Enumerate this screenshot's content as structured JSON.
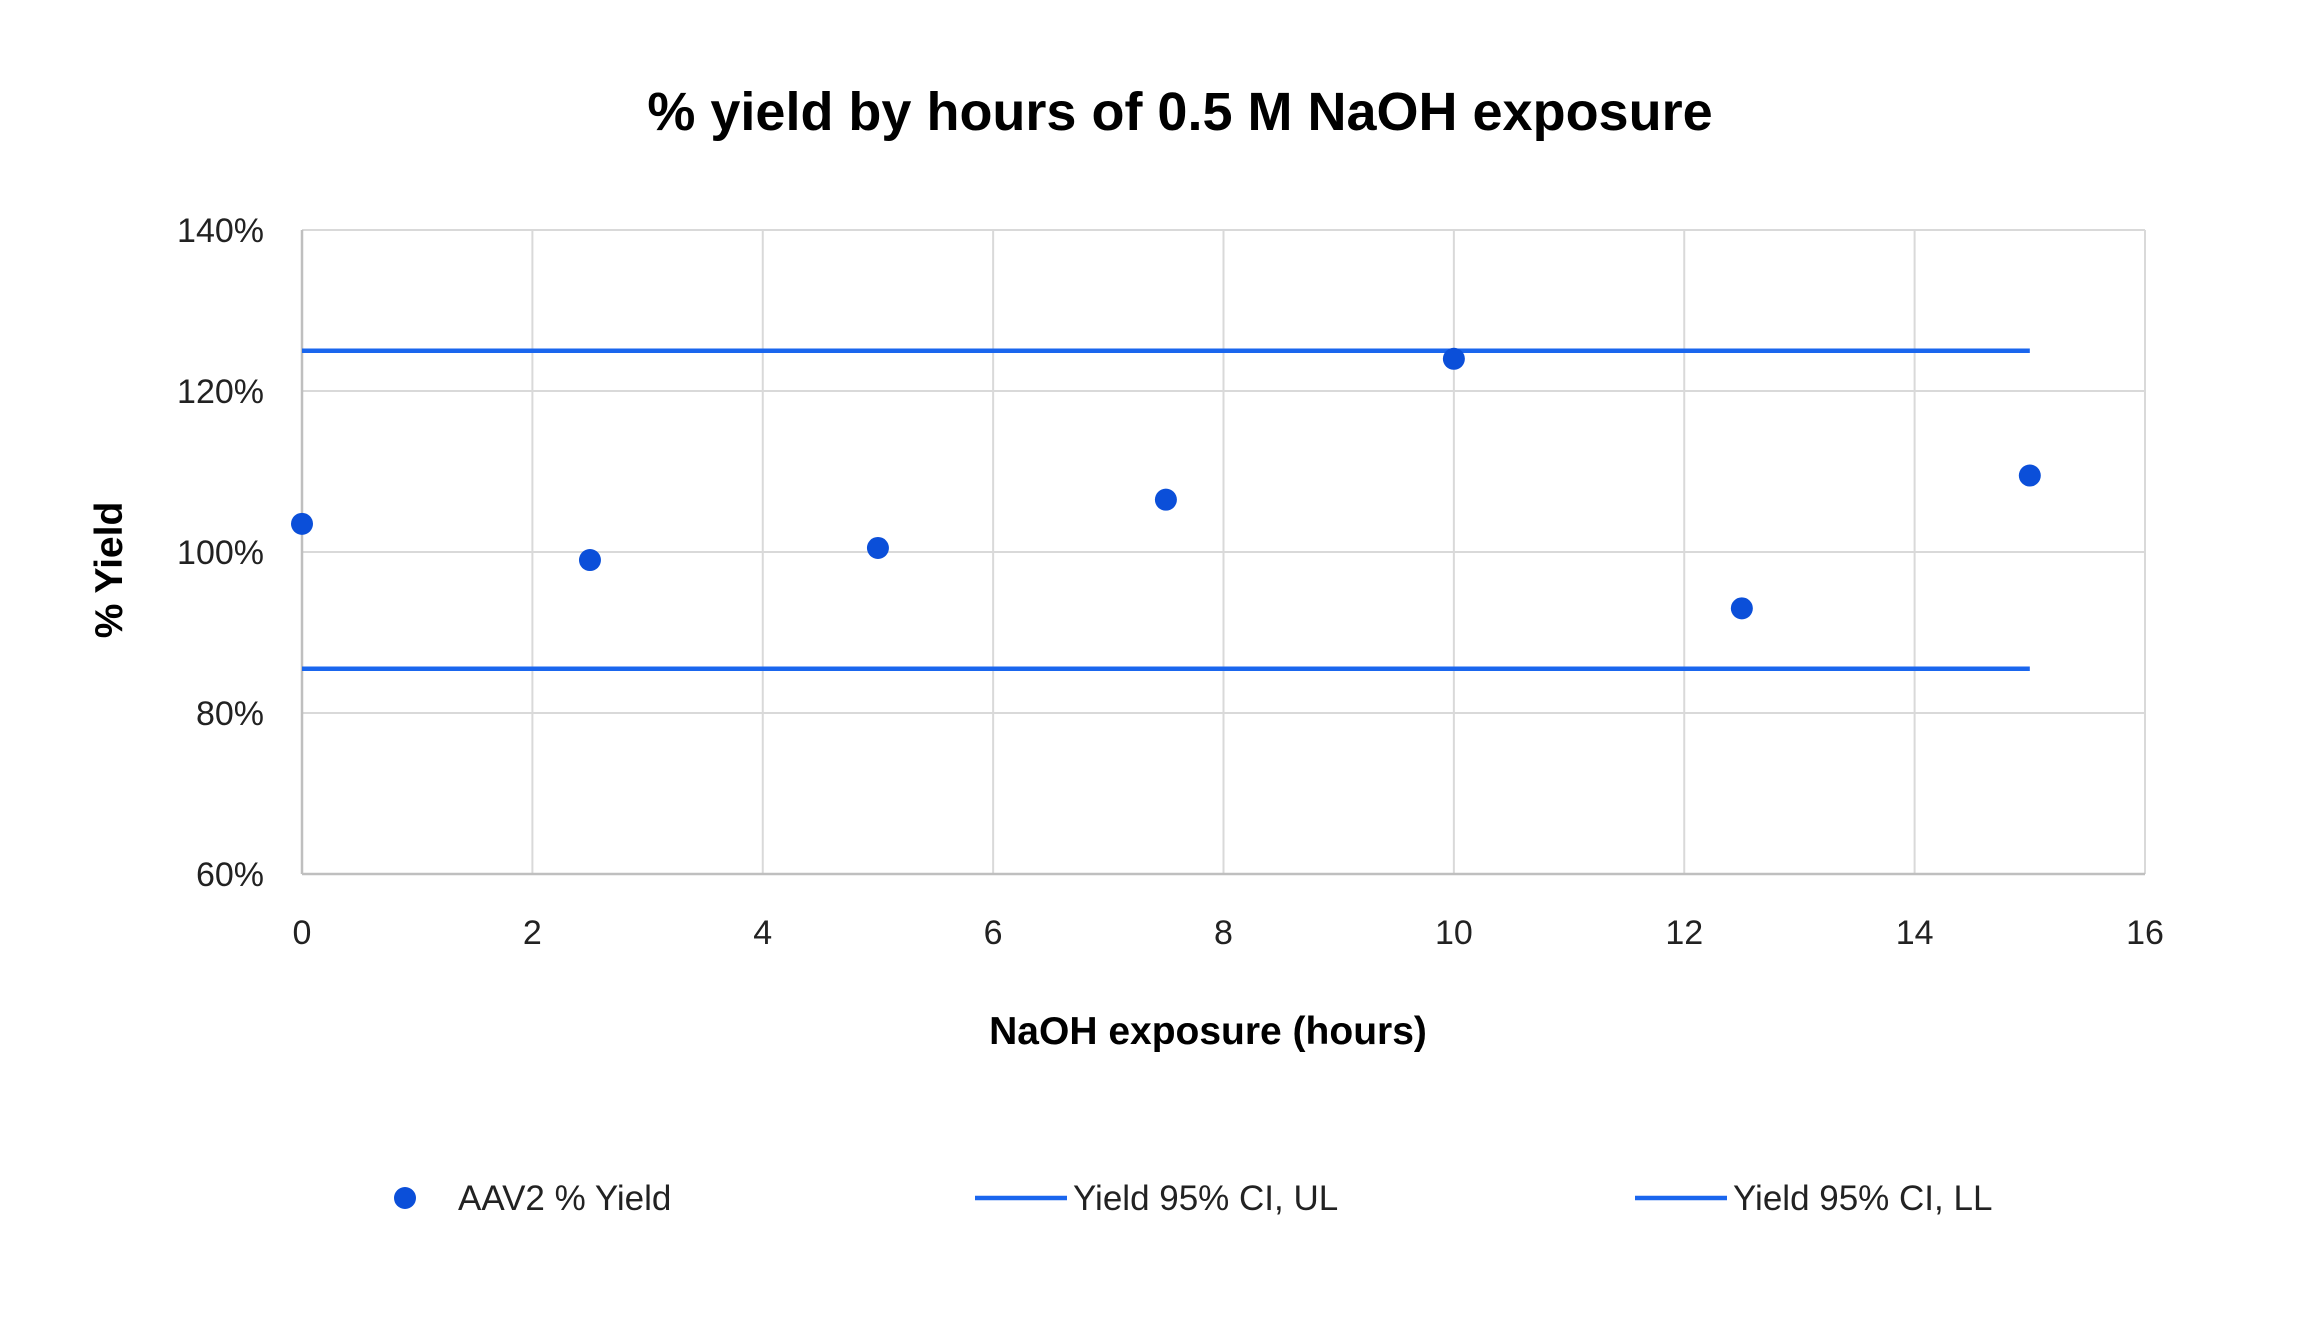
{
  "chart_data": {
    "type": "scatter",
    "title": "% yield by hours of 0.5 M NaOH exposure",
    "xlabel": "NaOH exposure (hours)",
    "ylabel": "% Yield",
    "xlim": [
      0,
      16
    ],
    "ylim": [
      60,
      140
    ],
    "xticks": [
      0,
      2,
      4,
      6,
      8,
      10,
      12,
      14,
      16
    ],
    "yticks": [
      60,
      80,
      100,
      120,
      140
    ],
    "ytick_labels": [
      "60%",
      "80%",
      "100%",
      "120%",
      "140%"
    ],
    "grid": true,
    "legend_position": "bottom",
    "series": [
      {
        "name": "AAV2 % Yield",
        "kind": "scatter",
        "color": "#0b4fd9",
        "x": [
          0,
          2.5,
          5,
          7.5,
          10,
          12.5,
          15
        ],
        "y": [
          103.5,
          99,
          100.5,
          106.5,
          124,
          93,
          109.5
        ]
      },
      {
        "name": "Yield 95% CI, UL",
        "kind": "line",
        "color": "#1a66ee",
        "x": [
          0,
          15
        ],
        "y": [
          125,
          125
        ]
      },
      {
        "name": "Yield 95% CI, LL",
        "kind": "line",
        "color": "#1a66ee",
        "x": [
          0,
          15
        ],
        "y": [
          85.5,
          85.5
        ]
      }
    ]
  }
}
